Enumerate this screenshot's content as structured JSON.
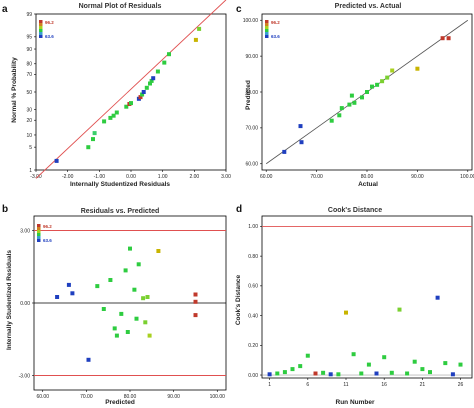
{
  "colors": {
    "high": "#c0392b",
    "mid": "#2ecc40",
    "low": "#1f3fbf",
    "refline": "#e05050"
  },
  "chart_data": [
    {
      "id": "a",
      "type": "scatter",
      "letter": "a",
      "title": "Normal Plot of Residuals",
      "xlabel": "Internally Studentized Residuals",
      "ylabel": "Normal % Probability",
      "legend": {
        "high": "96.2",
        "low": "63.6"
      },
      "xlim": [
        -3.0,
        3.0
      ],
      "ylim": [
        1,
        99
      ],
      "xticks": [
        "-3.00",
        "-2.00",
        "-1.00",
        "0.00",
        "1.00",
        "2.00",
        "3.00"
      ],
      "yticks": [
        "1",
        "5",
        "10",
        "20",
        "30",
        "50",
        "70",
        "80",
        "90",
        "95",
        "99"
      ],
      "ref_line": [
        [
          -3.0,
          0.3
        ],
        [
          3.0,
          99.8
        ]
      ],
      "points": [
        {
          "x": -2.35,
          "y": 2,
          "c": "#1f3fbf"
        },
        {
          "x": -1.35,
          "y": 5,
          "c": "#2ecc40"
        },
        {
          "x": -1.2,
          "y": 8,
          "c": "#2ecc40"
        },
        {
          "x": -1.15,
          "y": 11,
          "c": "#3acf6a"
        },
        {
          "x": -0.85,
          "y": 19,
          "c": "#2ecc40"
        },
        {
          "x": -0.65,
          "y": 22,
          "c": "#2ecc40"
        },
        {
          "x": -0.55,
          "y": 24,
          "c": "#2ecc40"
        },
        {
          "x": -0.45,
          "y": 27,
          "c": "#2ecc40"
        },
        {
          "x": -0.15,
          "y": 33,
          "c": "#2ecc40"
        },
        {
          "x": -0.05,
          "y": 36,
          "c": "#c0392b"
        },
        {
          "x": 0.0,
          "y": 37,
          "c": "#2ecc40"
        },
        {
          "x": 0.25,
          "y": 42,
          "c": "#1f3fbf"
        },
        {
          "x": 0.3,
          "y": 44,
          "c": "#c0392b"
        },
        {
          "x": 0.35,
          "y": 47,
          "c": "#2ecc40"
        },
        {
          "x": 0.4,
          "y": 50,
          "c": "#1f3fbf"
        },
        {
          "x": 0.5,
          "y": 55,
          "c": "#2ecc40"
        },
        {
          "x": 0.6,
          "y": 60,
          "c": "#2ecc40"
        },
        {
          "x": 0.65,
          "y": 63,
          "c": "#2ecc40"
        },
        {
          "x": 0.7,
          "y": 66,
          "c": "#1f3fbf"
        },
        {
          "x": 0.85,
          "y": 73,
          "c": "#2ecc40"
        },
        {
          "x": 1.05,
          "y": 81,
          "c": "#2ecc40"
        },
        {
          "x": 1.2,
          "y": 87,
          "c": "#2ecc40"
        },
        {
          "x": 2.05,
          "y": 94,
          "c": "#c8b400"
        },
        {
          "x": 2.15,
          "y": 97,
          "c": "#7ad030"
        }
      ]
    },
    {
      "id": "c",
      "type": "scatter",
      "letter": "c",
      "title": "Predicted vs. Actual",
      "xlabel": "Actual",
      "ylabel": "Predicted",
      "legend": {
        "high": "96.2",
        "low": "63.6"
      },
      "xlim": [
        60,
        100
      ],
      "ylim": [
        60,
        100
      ],
      "xticks": [
        "60.00",
        "70.00",
        "80.00",
        "90.00",
        "100.00"
      ],
      "yticks": [
        "60.00",
        "70.00",
        "80.00",
        "90.00",
        "100.00"
      ],
      "ref_line": [
        [
          60,
          60
        ],
        [
          100,
          100
        ]
      ],
      "points": [
        {
          "x": 63.6,
          "y": 63.3,
          "c": "#1f3fbf"
        },
        {
          "x": 67.0,
          "y": 66.0,
          "c": "#1f3fbf"
        },
        {
          "x": 66.8,
          "y": 70.5,
          "c": "#1f3fbf"
        },
        {
          "x": 73.0,
          "y": 72.0,
          "c": "#2ecc40"
        },
        {
          "x": 74.5,
          "y": 73.5,
          "c": "#2ecc40"
        },
        {
          "x": 75.0,
          "y": 75.5,
          "c": "#2ecc40"
        },
        {
          "x": 76.5,
          "y": 76.5,
          "c": "#2ecc40"
        },
        {
          "x": 77.5,
          "y": 77.0,
          "c": "#2ecc40"
        },
        {
          "x": 77.0,
          "y": 79.0,
          "c": "#2ecc40"
        },
        {
          "x": 79.0,
          "y": 78.5,
          "c": "#2ecc40"
        },
        {
          "x": 80.0,
          "y": 80.0,
          "c": "#2ecc40"
        },
        {
          "x": 81.0,
          "y": 81.5,
          "c": "#2ecc40"
        },
        {
          "x": 82.0,
          "y": 82.0,
          "c": "#2ecc40"
        },
        {
          "x": 83.0,
          "y": 83.0,
          "c": "#7ad030"
        },
        {
          "x": 84.0,
          "y": 84.0,
          "c": "#7ad030"
        },
        {
          "x": 85.0,
          "y": 86.0,
          "c": "#a8d020"
        },
        {
          "x": 90.0,
          "y": 86.5,
          "c": "#c8b400"
        },
        {
          "x": 95.0,
          "y": 95.0,
          "c": "#c0392b"
        },
        {
          "x": 96.2,
          "y": 95.0,
          "c": "#c0392b"
        }
      ]
    },
    {
      "id": "b",
      "type": "scatter",
      "letter": "b",
      "title": "Residuals vs. Predicted",
      "xlabel": "Predicted",
      "ylabel": "Internally Studentized Residuals",
      "legend": {
        "high": "96.2",
        "low": "63.6"
      },
      "xlim": [
        58,
        102
      ],
      "ylim": [
        -3.0,
        3.0
      ],
      "xticks": [
        "60.00",
        "70.00",
        "80.00",
        "90.00",
        "100.00"
      ],
      "yticks": [
        "-3.00",
        "0.00",
        "3.00"
      ],
      "ref_lines": [
        3.0,
        -3.0
      ],
      "zero_line": 0.0,
      "points": [
        {
          "x": 63.3,
          "y": 0.25,
          "c": "#1f3fbf"
        },
        {
          "x": 66.0,
          "y": 0.75,
          "c": "#1f3fbf"
        },
        {
          "x": 66.8,
          "y": 0.4,
          "c": "#1f3fbf"
        },
        {
          "x": 70.5,
          "y": -2.35,
          "c": "#1f3fbf"
        },
        {
          "x": 72.5,
          "y": 0.7,
          "c": "#2ecc40"
        },
        {
          "x": 74.0,
          "y": -0.25,
          "c": "#2ecc40"
        },
        {
          "x": 75.5,
          "y": 0.95,
          "c": "#2ecc40"
        },
        {
          "x": 76.5,
          "y": -1.05,
          "c": "#2ecc40"
        },
        {
          "x": 77.0,
          "y": -1.35,
          "c": "#2ecc40"
        },
        {
          "x": 78.0,
          "y": -0.45,
          "c": "#2ecc40"
        },
        {
          "x": 79.0,
          "y": 1.35,
          "c": "#2ecc40"
        },
        {
          "x": 79.5,
          "y": -1.2,
          "c": "#2ecc40"
        },
        {
          "x": 80.0,
          "y": 2.25,
          "c": "#2ecc40"
        },
        {
          "x": 81.0,
          "y": 0.55,
          "c": "#2ecc40"
        },
        {
          "x": 81.5,
          "y": -0.65,
          "c": "#2ecc40"
        },
        {
          "x": 82.0,
          "y": 1.6,
          "c": "#2ecc40"
        },
        {
          "x": 83.0,
          "y": 0.2,
          "c": "#7ad030"
        },
        {
          "x": 83.5,
          "y": -0.8,
          "c": "#7ad030"
        },
        {
          "x": 84.0,
          "y": 0.25,
          "c": "#7ad030"
        },
        {
          "x": 84.5,
          "y": -1.35,
          "c": "#a8d020"
        },
        {
          "x": 86.5,
          "y": 2.15,
          "c": "#c8b400"
        },
        {
          "x": 95.0,
          "y": 0.35,
          "c": "#c0392b"
        },
        {
          "x": 95.0,
          "y": 0.05,
          "c": "#c0392b"
        },
        {
          "x": 95.0,
          "y": -0.5,
          "c": "#c0392b"
        }
      ]
    },
    {
      "id": "d",
      "type": "scatter",
      "letter": "d",
      "title": "Cook's Distance",
      "xlabel": "Run Number",
      "ylabel": "Cook's Distance",
      "xlim": [
        0,
        27.5
      ],
      "ylim": [
        0,
        1.05
      ],
      "xticks": [
        "1",
        "6",
        "11",
        "16",
        "21",
        "26"
      ],
      "xtick_values": [
        1,
        6,
        11,
        16,
        21,
        26
      ],
      "yticks": [
        "0.00",
        "0.20",
        "0.40",
        "0.60",
        "0.80",
        "1.00"
      ],
      "ref_lines": [
        1.0
      ],
      "points": [
        {
          "x": 1,
          "y": 0.005,
          "c": "#1f3fbf"
        },
        {
          "x": 2,
          "y": 0.01,
          "c": "#2ecc40"
        },
        {
          "x": 3,
          "y": 0.02,
          "c": "#2ecc40"
        },
        {
          "x": 4,
          "y": 0.04,
          "c": "#2ecc40"
        },
        {
          "x": 5,
          "y": 0.06,
          "c": "#2ecc40"
        },
        {
          "x": 6,
          "y": 0.13,
          "c": "#2ecc40"
        },
        {
          "x": 7,
          "y": 0.01,
          "c": "#c0392b"
        },
        {
          "x": 8,
          "y": 0.015,
          "c": "#2ecc40"
        },
        {
          "x": 9,
          "y": 0.005,
          "c": "#1f3fbf"
        },
        {
          "x": 10,
          "y": 0.005,
          "c": "#2ecc40"
        },
        {
          "x": 11,
          "y": 0.42,
          "c": "#c8b400"
        },
        {
          "x": 12,
          "y": 0.14,
          "c": "#2ecc40"
        },
        {
          "x": 13,
          "y": 0.01,
          "c": "#2ecc40"
        },
        {
          "x": 14,
          "y": 0.07,
          "c": "#2ecc40"
        },
        {
          "x": 15,
          "y": 0.01,
          "c": "#1f3fbf"
        },
        {
          "x": 16,
          "y": 0.12,
          "c": "#2ecc40"
        },
        {
          "x": 17,
          "y": 0.015,
          "c": "#2ecc40"
        },
        {
          "x": 18,
          "y": 0.44,
          "c": "#7ad030"
        },
        {
          "x": 19,
          "y": 0.01,
          "c": "#2ecc40"
        },
        {
          "x": 20,
          "y": 0.09,
          "c": "#2ecc40"
        },
        {
          "x": 21,
          "y": 0.04,
          "c": "#2ecc40"
        },
        {
          "x": 22,
          "y": 0.02,
          "c": "#2ecc40"
        },
        {
          "x": 23,
          "y": 0.52,
          "c": "#1f3fbf"
        },
        {
          "x": 24,
          "y": 0.08,
          "c": "#2ecc40"
        },
        {
          "x": 25,
          "y": 0.005,
          "c": "#1f3fbf"
        },
        {
          "x": 26,
          "y": 0.07,
          "c": "#2ecc40"
        }
      ]
    }
  ]
}
